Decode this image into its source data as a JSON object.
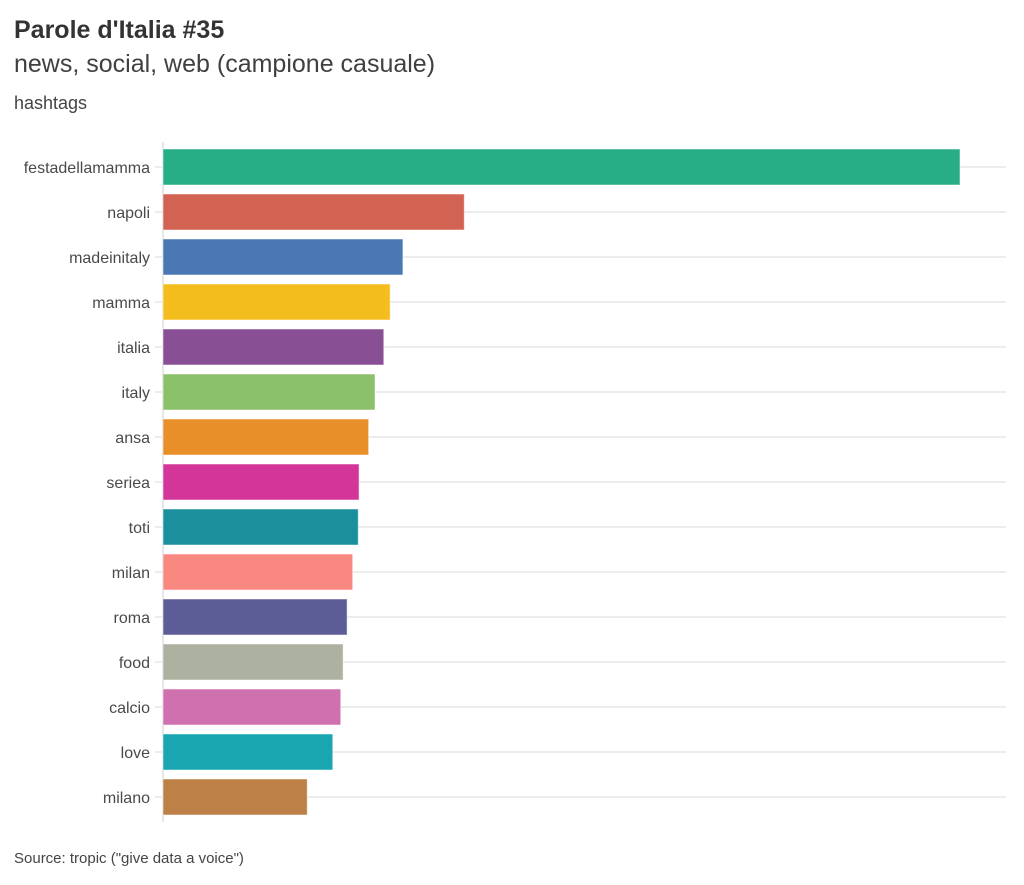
{
  "header": {
    "title": "Parole d'Italia #35",
    "subtitle": "news, social, web (campione casuale)"
  },
  "footer": {
    "source": "Source: tropic (\"give data a voice\")"
  },
  "chart_data": {
    "type": "bar",
    "orientation": "horizontal",
    "title": "Parole d'Italia #35",
    "subtitle": "news, social, web (campione casuale)",
    "ylabel": "hashtags",
    "xlabel": "",
    "value_scale": "relative (largest = 100), no value axis shown",
    "xlim": [
      0,
      105
    ],
    "grid": true,
    "legend": "none",
    "categories": [
      "festadellamamma",
      "napoli",
      "madeinitaly",
      "mamma",
      "italia",
      "italy",
      "ansa",
      "seriea",
      "toti",
      "milan",
      "roma",
      "food",
      "calcio",
      "love",
      "milano"
    ],
    "values": [
      100,
      37.8,
      30.1,
      28.5,
      27.7,
      26.6,
      25.8,
      24.6,
      24.5,
      23.8,
      23.1,
      22.6,
      22.3,
      21.3,
      18.1
    ],
    "colors": [
      "#27ae87",
      "#d26252",
      "#4a78b4",
      "#f4bd1e",
      "#894f95",
      "#8cc16b",
      "#e88f29",
      "#d33598",
      "#1b8f9c",
      "#f88880",
      "#5c5c96",
      "#adb1a0",
      "#cf70af",
      "#19a6b0",
      "#bd8047"
    ]
  }
}
